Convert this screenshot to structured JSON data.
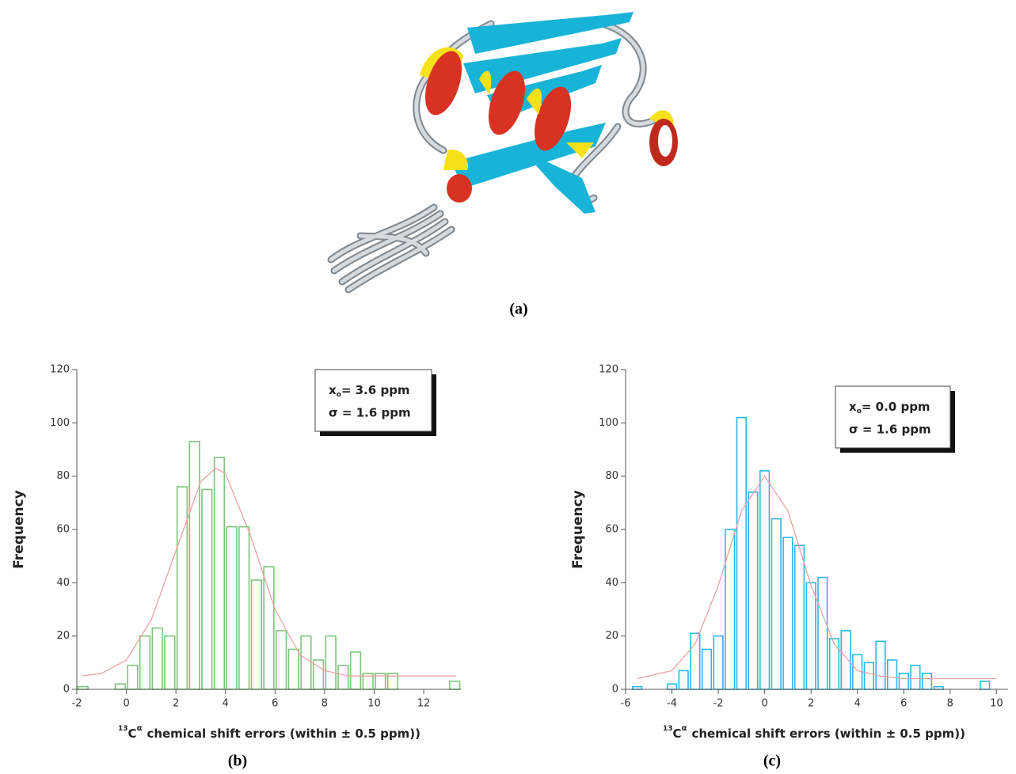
{
  "figure": {
    "panel_label": "(a)"
  },
  "chart_data": [
    {
      "type": "histogram",
      "label": "(b)",
      "color": "#7cc67a",
      "bins": [
        -2,
        -1.5,
        -1,
        -0.5,
        0,
        0.5,
        1,
        1.5,
        2,
        2.5,
        3,
        3.5,
        4,
        4.5,
        5,
        5.5,
        6,
        6.5,
        7,
        7.5,
        8,
        8.5,
        9,
        9.5,
        10,
        10.5,
        11,
        11.5,
        12,
        12.5,
        13,
        13.5
      ],
      "values": [
        1,
        0,
        0,
        2,
        9,
        20,
        23,
        20,
        76,
        93,
        75,
        87,
        61,
        61,
        41,
        46,
        22,
        15,
        20,
        11,
        20,
        9,
        14,
        6,
        6,
        6,
        0,
        0,
        0,
        0,
        3
      ],
      "fit": {
        "color": "#e8a3a3",
        "x": [
          -1.8,
          -1,
          0,
          1,
          2,
          3,
          3.6,
          4,
          5,
          6,
          7,
          8,
          9,
          10,
          11,
          12,
          13.3
        ],
        "values": [
          5,
          6,
          11,
          26,
          52,
          78,
          83,
          81,
          58,
          30,
          13,
          7,
          5,
          5,
          5,
          5,
          5
        ]
      },
      "xlim": [
        -2,
        13.5
      ],
      "xticks": [
        -2,
        0,
        2,
        4,
        6,
        8,
        10,
        12
      ],
      "ylim": [
        0,
        120
      ],
      "yticks": [
        0,
        20,
        40,
        60,
        80,
        100,
        120
      ],
      "ylabel": "Frequency",
      "xlabel": {
        "isotope": "13",
        "atom": "C",
        "superscript": "α",
        "text": "chemical shift errors (within ± 0.5 ppm))"
      },
      "annotation": {
        "symbol": "x",
        "subscript": "o",
        "mean": "= 3.6 ppm",
        "sigma": "σ = 1.6 ppm"
      }
    },
    {
      "type": "histogram",
      "label": "(c)",
      "color": "#2bb6e3",
      "bins": [
        -5.75,
        -5.25,
        -4.75,
        -4.25,
        -3.75,
        -3.25,
        -2.75,
        -2.25,
        -1.75,
        -1.25,
        -0.75,
        -0.25,
        0.25,
        0.75,
        1.25,
        1.75,
        2.25,
        2.75,
        3.25,
        3.75,
        4.25,
        4.75,
        5.25,
        5.75,
        6.25,
        6.75,
        7.25,
        7.75,
        8.25,
        8.75,
        9.25,
        9.75
      ],
      "values": [
        1,
        0,
        0,
        2,
        7,
        21,
        15,
        20,
        60,
        102,
        74,
        82,
        64,
        57,
        54,
        40,
        42,
        19,
        22,
        13,
        10,
        18,
        11,
        6,
        9,
        6,
        1,
        0,
        0,
        0,
        3
      ],
      "fit": {
        "color": "#e8a3a3",
        "x": [
          -5.5,
          -4,
          -3,
          -2,
          -1,
          0,
          1,
          2,
          3,
          4,
          5,
          6,
          8,
          10
        ],
        "values": [
          4,
          7,
          17,
          39,
          67,
          80,
          67,
          39,
          17,
          7,
          5,
          4,
          4,
          4
        ]
      },
      "xlim": [
        -6,
        10.5
      ],
      "xticks": [
        -6,
        -4,
        -2,
        0,
        2,
        4,
        6,
        8,
        10
      ],
      "ylim": [
        0,
        120
      ],
      "yticks": [
        0,
        20,
        40,
        60,
        80,
        100,
        120
      ],
      "ylabel": "Frequency",
      "xlabel": {
        "isotope": "13",
        "atom": "C",
        "superscript": "α",
        "text": "chemical shift errors (within ± 0.5 ppm))"
      },
      "annotation": {
        "symbol": "x",
        "subscript": "o",
        "mean": "= 0.0 ppm",
        "sigma": "σ = 1.6 ppm"
      }
    }
  ]
}
